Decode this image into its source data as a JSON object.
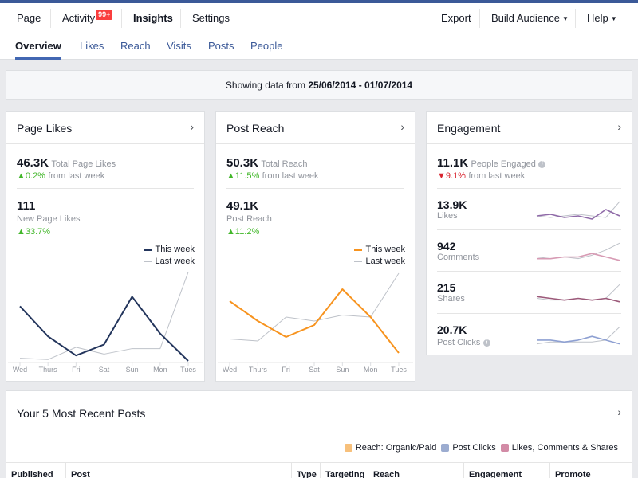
{
  "topnav": {
    "page": "Page",
    "activity": "Activity",
    "activity_badge": "99+",
    "insights": "Insights",
    "settings": "Settings",
    "export": "Export",
    "build_audience": "Build Audience",
    "help": "Help"
  },
  "subnav": {
    "tabs": [
      "Overview",
      "Likes",
      "Reach",
      "Visits",
      "Posts",
      "People"
    ],
    "active": "Overview"
  },
  "daterange": {
    "prefix": "Showing data from",
    "range": "25/06/2014 - 01/07/2014"
  },
  "page_likes": {
    "title": "Page Likes",
    "total_value": "46.3K",
    "total_label": "Total Page Likes",
    "total_change": "0.2%",
    "total_change_suffix": "from last week",
    "new_value": "111",
    "new_label": "New Page Likes",
    "new_change": "33.7%"
  },
  "post_reach": {
    "title": "Post Reach",
    "total_value": "50.3K",
    "total_label": "Total Reach",
    "total_change": "11.5%",
    "total_change_suffix": "from last week",
    "post_value": "49.1K",
    "post_label": "Post Reach",
    "post_change": "11.2%"
  },
  "legend": {
    "this_week": "This week",
    "last_week": "Last week"
  },
  "engagement": {
    "title": "Engagement",
    "people_value": "11.1K",
    "people_label": "People Engaged",
    "people_change": "9.1%",
    "people_change_suffix": "from last week",
    "rows": [
      {
        "value": "13.9K",
        "label": "Likes"
      },
      {
        "value": "942",
        "label": "Comments"
      },
      {
        "value": "215",
        "label": "Shares"
      },
      {
        "value": "20.7K",
        "label": "Post Clicks"
      }
    ]
  },
  "recent_posts": {
    "title": "Your 5 Most Recent Posts",
    "legend": [
      "Reach: Organic/Paid",
      "Post Clicks",
      "Likes, Comments & Shares"
    ],
    "columns": [
      "Published",
      "Post",
      "Type",
      "Targeting",
      "Reach",
      "Engagement",
      "Promote"
    ]
  },
  "colors": {
    "brand": "#3b5998",
    "this_week_likes": "#23355c",
    "this_week_reach": "#f7931e",
    "last_week": "#bec2c9",
    "up": "#42b72a",
    "down": "#d8242f",
    "legend_reach": "#f7c07b",
    "legend_clicks": "#9cacd0",
    "legend_engagement": "#d28ba6"
  },
  "chart_data": [
    {
      "type": "line",
      "chart": "page_likes",
      "categories": [
        "Wed",
        "Thurs",
        "Fri",
        "Sat",
        "Sun",
        "Mon",
        "Tues"
      ],
      "series": [
        {
          "name": "This week",
          "values": [
            40,
            18,
            4,
            12,
            47,
            20,
            0
          ]
        },
        {
          "name": "Last week",
          "values": [
            2,
            1,
            10,
            5,
            9,
            9,
            65
          ]
        }
      ],
      "ylim": [
        0,
        70
      ]
    },
    {
      "type": "line",
      "chart": "post_reach",
      "categories": [
        "Wed",
        "Thurs",
        "Fri",
        "Sat",
        "Sun",
        "Mon",
        "Tues"
      ],
      "series": [
        {
          "name": "This week",
          "values": [
            30,
            20,
            12,
            18,
            36,
            22,
            4
          ]
        },
        {
          "name": "Last week",
          "values": [
            11,
            10,
            22,
            20,
            23,
            22,
            44
          ]
        }
      ],
      "ylim": [
        0,
        48
      ]
    },
    {
      "type": "line",
      "chart": "engagement_likes",
      "series": [
        {
          "name": "This week",
          "values": [
            5,
            6,
            4,
            5,
            3,
            9,
            5
          ]
        },
        {
          "name": "Last week",
          "values": [
            5,
            4,
            5,
            6,
            5,
            4,
            14
          ]
        }
      ]
    },
    {
      "type": "line",
      "chart": "engagement_comments",
      "series": [
        {
          "name": "This week",
          "values": [
            5,
            5,
            6,
            6,
            8,
            6,
            4
          ]
        },
        {
          "name": "Last week",
          "values": [
            6,
            5,
            6,
            5,
            7,
            10,
            14
          ]
        }
      ]
    },
    {
      "type": "line",
      "chart": "engagement_shares",
      "series": [
        {
          "name": "This week",
          "values": [
            7,
            6,
            5,
            6,
            5,
            6,
            4
          ]
        },
        {
          "name": "Last week",
          "values": [
            6,
            5,
            5,
            6,
            5,
            6,
            14
          ]
        }
      ]
    },
    {
      "type": "line",
      "chart": "engagement_post_clicks",
      "series": [
        {
          "name": "This week",
          "values": [
            6,
            6,
            5,
            6,
            8,
            6,
            4
          ]
        },
        {
          "name": "Last week",
          "values": [
            4,
            5,
            5,
            5,
            5,
            6,
            13
          ]
        }
      ]
    }
  ]
}
